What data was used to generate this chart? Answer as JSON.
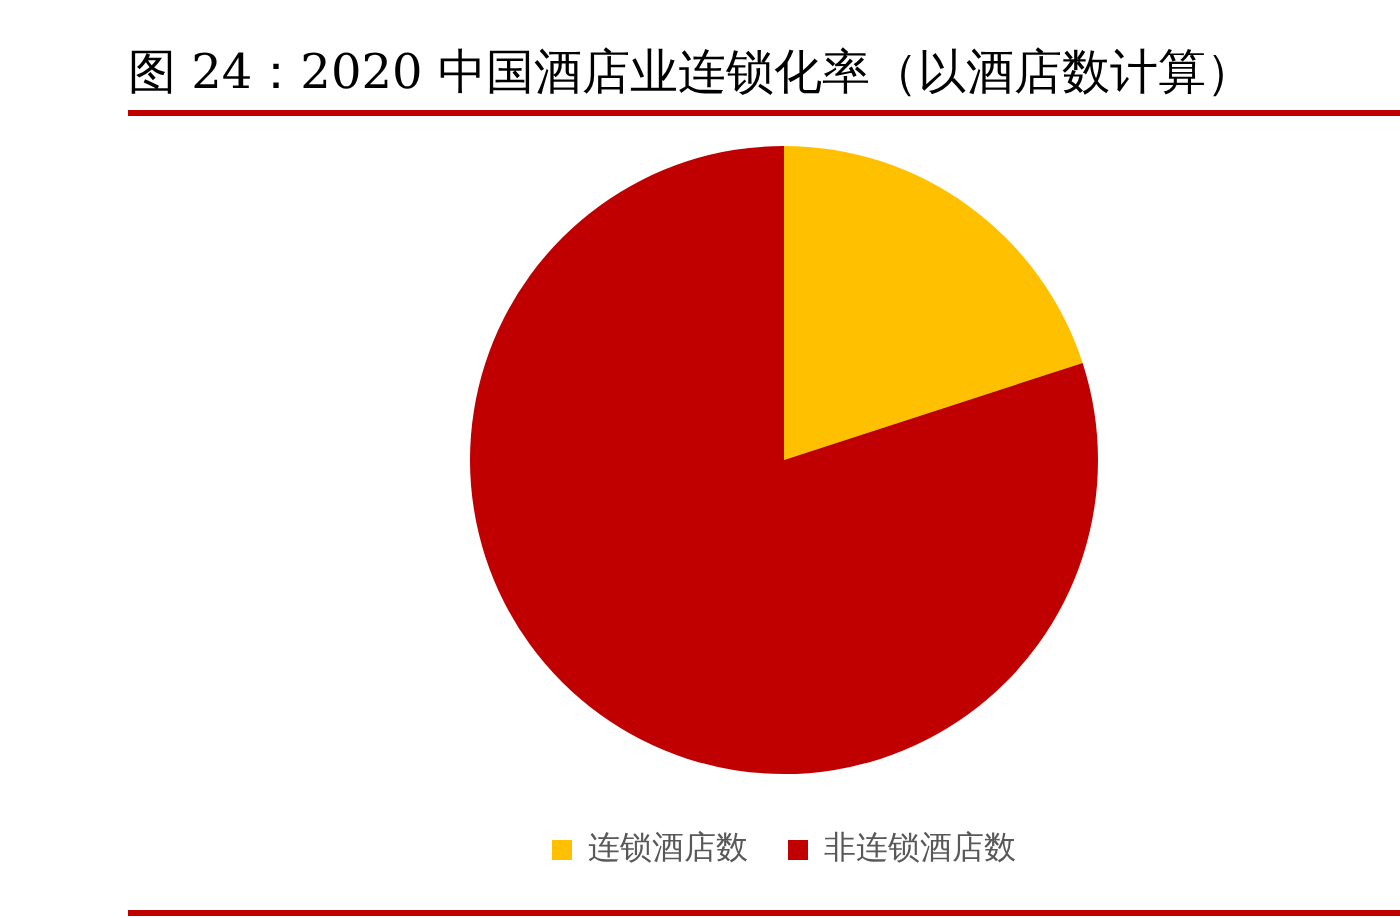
{
  "chart_data": {
    "type": "pie",
    "title": "图 24：2020 中国酒店业连锁化率（以酒店数计算）",
    "categories": [
      "连锁酒店数",
      "非连锁酒店数"
    ],
    "values": [
      20,
      80
    ],
    "colors": [
      "#ffc000",
      "#c00000"
    ],
    "legend": "bottom"
  }
}
